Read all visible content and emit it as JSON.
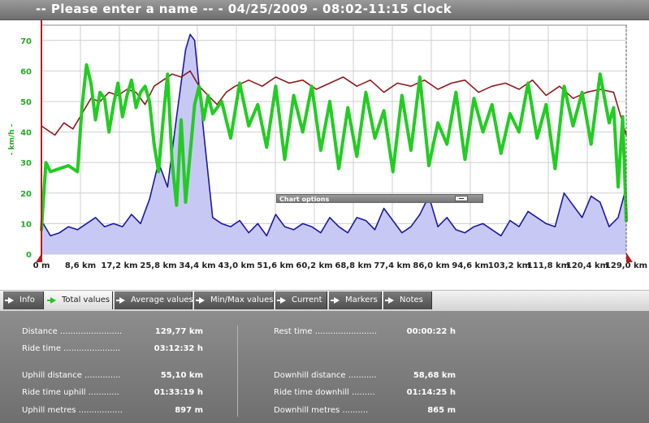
{
  "title": "-- Please enter a name -- - 04/25/2009 - 08:02-11:15 Clock",
  "chart_options_label": "Chart options",
  "tabs": [
    {
      "label": "Info",
      "active": false
    },
    {
      "label": "Total values",
      "active": true
    },
    {
      "label": "Average values",
      "active": false
    },
    {
      "label": "Min/Max values",
      "active": false
    },
    {
      "label": "Current",
      "active": false
    },
    {
      "label": "Markers",
      "active": false
    },
    {
      "label": "Notes",
      "active": false
    }
  ],
  "stats": {
    "distance": {
      "label": "Distance ........................",
      "value": "129,77 km"
    },
    "ride_time": {
      "label": "Ride time ......................",
      "value": "03:12:32 h"
    },
    "uphill_distance": {
      "label": "Uphill distance ..............",
      "value": "55,10 km"
    },
    "ride_time_uphill": {
      "label": "Ride time uphill ............",
      "value": "01:33:19 h"
    },
    "uphill_metres": {
      "label": "Uphill metres .................",
      "value": "897 m"
    },
    "rest_time": {
      "label": "Rest time ........................",
      "value": "00:00:22 h"
    },
    "downhill_distance": {
      "label": "Downhill distance ...........",
      "value": "58,68 km"
    },
    "ride_time_downhill": {
      "label": "Ride time downhill .........",
      "value": "01:14:25 h"
    },
    "downhill_metres": {
      "label": "Downhill metres ..........",
      "value": "865 m"
    }
  },
  "colors": {
    "speed": "#22cc22",
    "average": "#8b1a1a",
    "altitude_line": "#1a1a9e",
    "altitude_fill": "#c8c8f5",
    "marker": "#b02020"
  },
  "chart_data": {
    "type": "line",
    "ylabel": "- km/h -",
    "yticks": [
      "0",
      "10",
      "20",
      "30",
      "40",
      "50",
      "60",
      "70"
    ],
    "ylim": [
      0,
      75
    ],
    "xticks": [
      "0 m",
      "8,6 km",
      "17,2 km",
      "25,8 km",
      "34,4 km",
      "43,0 km",
      "51,6 km",
      "60,2 km",
      "68,8 km",
      "77,4 km",
      "86,0 km",
      "94,6 km",
      "103,2 km",
      "111,8 km",
      "120,4 km",
      "129,0 km"
    ],
    "xlim": [
      0,
      129.8
    ],
    "grid": true,
    "series": [
      {
        "key": "altitude",
        "x": [
          0,
          2,
          4,
          6,
          8,
          10,
          12,
          14,
          16,
          18,
          20,
          22,
          24,
          26,
          28,
          30,
          32,
          33,
          34,
          36,
          38,
          40,
          42,
          44,
          46,
          48,
          50,
          52,
          54,
          56,
          58,
          60,
          62,
          64,
          66,
          68,
          70,
          72,
          74,
          76,
          78,
          80,
          82,
          84,
          86,
          88,
          90,
          92,
          94,
          96,
          98,
          100,
          102,
          104,
          106,
          108,
          110,
          112,
          114,
          116,
          118,
          120,
          122,
          124,
          126,
          128,
          129.8
        ],
        "values": [
          11,
          6,
          7,
          9,
          8,
          10,
          12,
          9,
          10,
          9,
          13,
          10,
          18,
          30,
          22,
          45,
          67,
          72,
          70,
          40,
          12,
          10,
          9,
          11,
          7,
          10,
          6,
          13,
          9,
          8,
          10,
          9,
          7,
          12,
          9,
          7,
          12,
          11,
          8,
          15,
          11,
          7,
          9,
          13,
          19,
          9,
          12,
          8,
          7,
          9,
          10,
          8,
          6,
          11,
          9,
          14,
          12,
          10,
          9,
          20,
          16,
          12,
          19,
          17,
          9,
          12,
          22
        ]
      },
      {
        "key": "average",
        "x": [
          0,
          3,
          5,
          7,
          9,
          11,
          13,
          15,
          17,
          19,
          21,
          23,
          25,
          27,
          29,
          31,
          33,
          35,
          37,
          39,
          41,
          43,
          46,
          49,
          52,
          55,
          58,
          61,
          64,
          67,
          70,
          73,
          76,
          79,
          82,
          85,
          88,
          91,
          94,
          97,
          100,
          103,
          106,
          109,
          112,
          115,
          118,
          121,
          124,
          127,
          129.8
        ],
        "values": [
          42,
          39,
          43,
          41,
          46,
          51,
          50,
          53,
          52,
          54,
          53,
          49,
          55,
          57,
          59,
          58,
          60,
          55,
          52,
          49,
          53,
          55,
          57,
          55,
          58,
          56,
          57,
          54,
          56,
          58,
          55,
          57,
          53,
          56,
          55,
          57,
          54,
          56,
          57,
          53,
          55,
          56,
          54,
          57,
          52,
          55,
          51,
          53,
          54,
          53,
          39
        ]
      },
      {
        "key": "speed",
        "x": [
          0,
          1,
          2,
          4,
          6,
          8,
          9,
          10,
          11,
          12,
          13,
          14,
          15,
          16,
          17,
          18,
          19,
          20,
          21,
          22,
          23,
          24,
          25,
          26,
          27,
          28,
          29,
          30,
          31,
          32,
          33,
          34,
          35,
          36,
          37,
          38,
          40,
          42,
          44,
          46,
          48,
          50,
          52,
          54,
          56,
          58,
          60,
          62,
          64,
          66,
          68,
          70,
          72,
          74,
          76,
          78,
          80,
          82,
          84,
          86,
          88,
          90,
          92,
          94,
          96,
          98,
          100,
          102,
          104,
          106,
          108,
          110,
          112,
          114,
          116,
          118,
          120,
          122,
          124,
          126,
          127,
          128,
          129,
          129.8
        ],
        "values": [
          8,
          30,
          27,
          28,
          29,
          27,
          48,
          62,
          56,
          44,
          53,
          51,
          40,
          49,
          56,
          45,
          52,
          57,
          48,
          53,
          55,
          50,
          36,
          27,
          44,
          59,
          30,
          16,
          44,
          17,
          33,
          49,
          55,
          44,
          52,
          46,
          50,
          38,
          56,
          42,
          49,
          35,
          55,
          31,
          52,
          40,
          55,
          34,
          50,
          28,
          48,
          32,
          53,
          38,
          47,
          27,
          52,
          34,
          58,
          29,
          43,
          36,
          53,
          31,
          51,
          40,
          49,
          33,
          46,
          40,
          56,
          38,
          49,
          28,
          55,
          42,
          53,
          36,
          59,
          43,
          48,
          22,
          45,
          11
        ]
      }
    ]
  }
}
